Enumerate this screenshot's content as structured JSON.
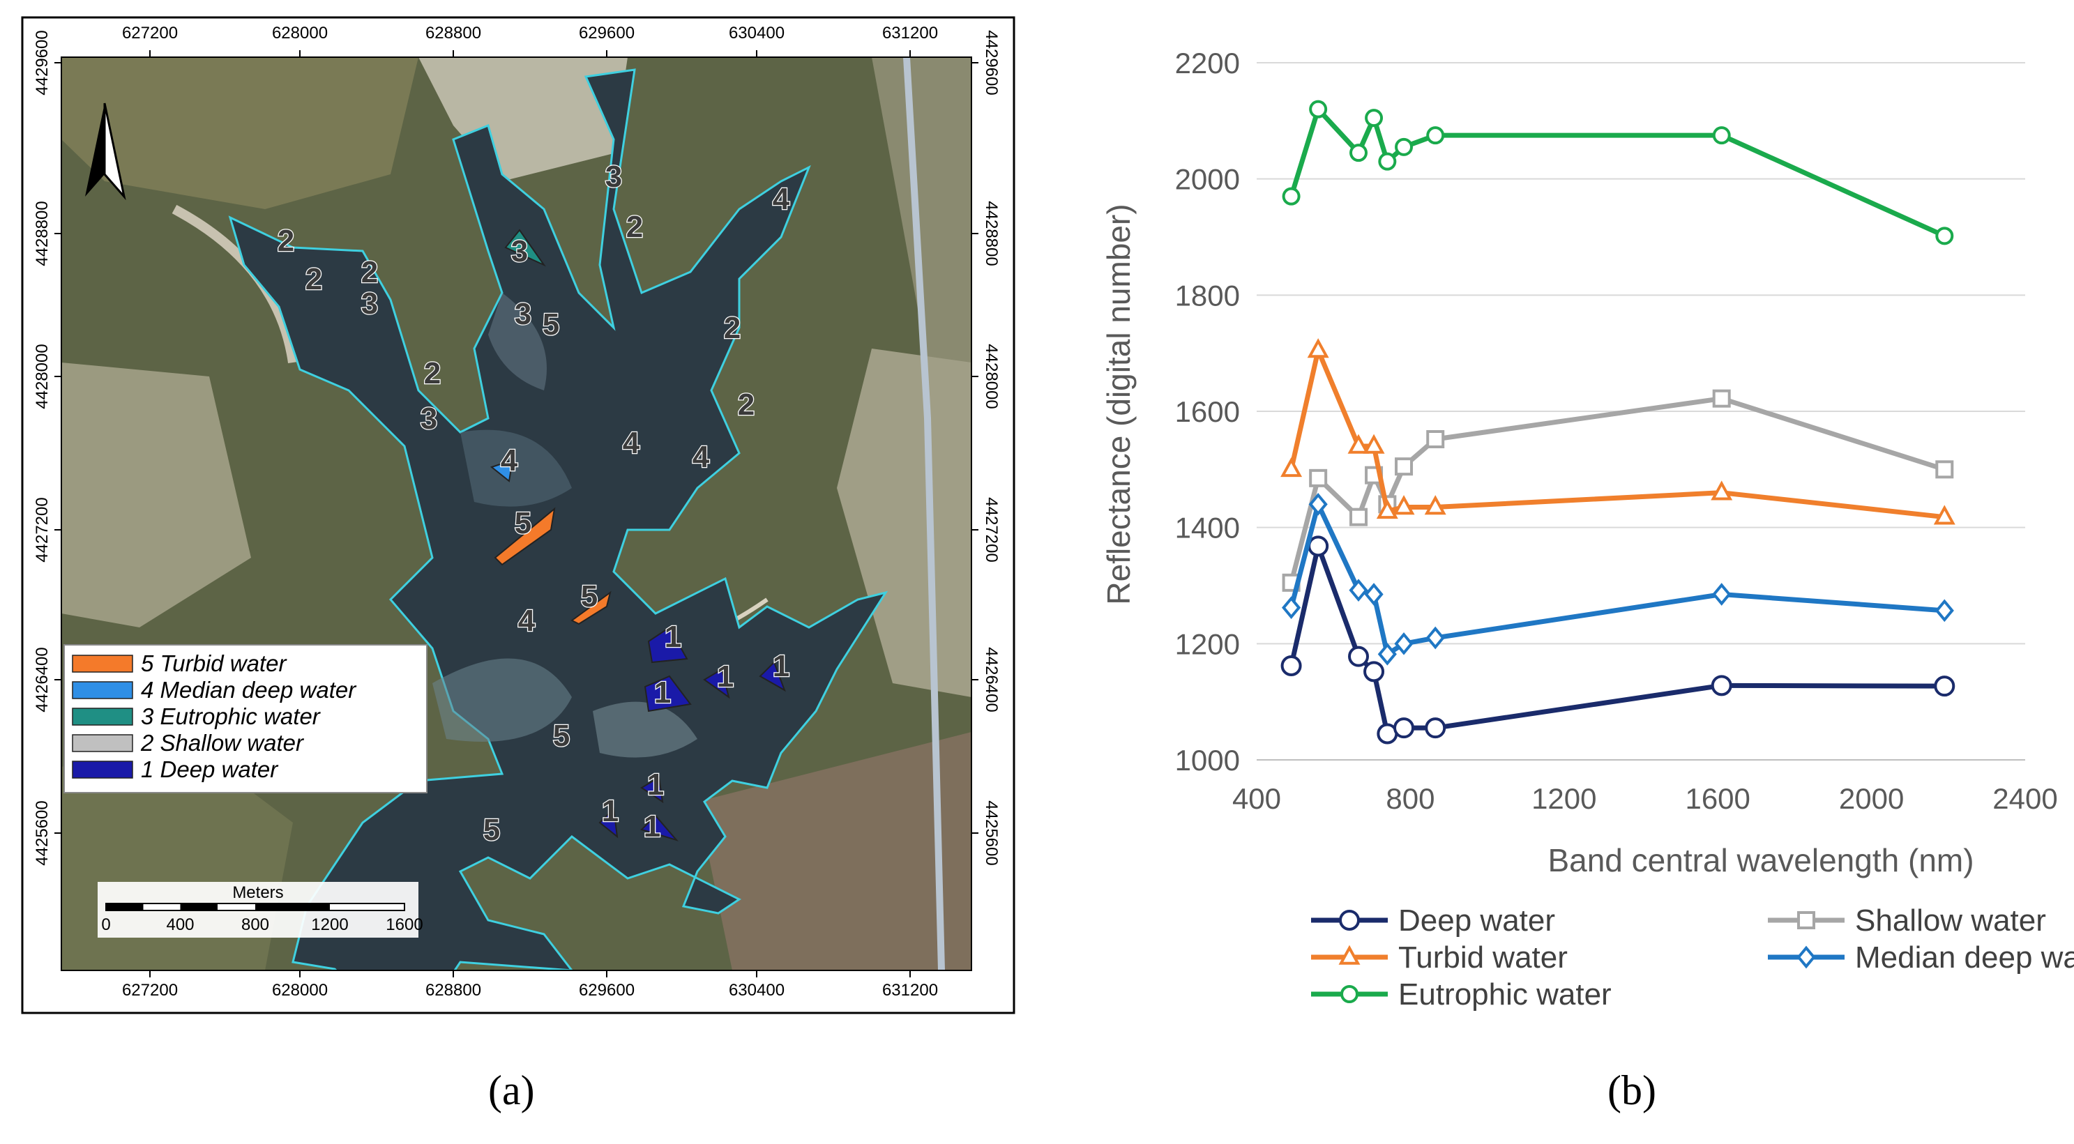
{
  "map": {
    "top_ticks": [
      "627200",
      "628000",
      "628800",
      "629600",
      "630400",
      "631200"
    ],
    "side_ticks": [
      "4429600",
      "4428800",
      "4428000",
      "4427200",
      "4426400",
      "4425600"
    ],
    "legend": [
      {
        "label": "5 Turbid water",
        "color": "#f47a2a"
      },
      {
        "label": "4 Median deep water",
        "color": "#2f8fe6"
      },
      {
        "label": "3 Eutrophic water",
        "color": "#1f8f84"
      },
      {
        "label": "2 Shallow water",
        "color": "#c0c0c0"
      },
      {
        "label": "1 Deep water",
        "color": "#1a1aa8"
      }
    ],
    "scale_title": "Meters",
    "scale_labels": [
      "0",
      "400",
      "800",
      "1200",
      "1600"
    ],
    "class_labels": [
      "2",
      "2",
      "2",
      "3",
      "3",
      "3",
      "3",
      "5",
      "2",
      "2",
      "2",
      "2",
      "3",
      "4",
      "4",
      "4",
      "4",
      "4",
      "5",
      "5",
      "1",
      "1",
      "1",
      "1",
      "5",
      "1",
      "1",
      "1",
      "5"
    ],
    "caption": "(a)"
  },
  "chart_caption": "(b)",
  "chart_data": {
    "type": "line",
    "title": "",
    "xlabel": "Band central wavelength (nm)",
    "ylabel": "Reflectance (digital number)",
    "xlim": [
      400,
      2400
    ],
    "ylim": [
      1000,
      2200
    ],
    "xticks": [
      "400",
      "800",
      "1200",
      "1600",
      "2000",
      "2400"
    ],
    "yticks": [
      "1000",
      "1200",
      "1400",
      "1600",
      "1800",
      "2000",
      "2200"
    ],
    "grid": "horizontal",
    "legend_position": "bottom",
    "series": [
      {
        "name": "Deep water",
        "color": "#1a2b6b",
        "marker": "circle",
        "x": [
          490,
          560,
          665,
          705,
          740,
          783,
          865,
          1610,
          2190
        ],
        "y": [
          1162,
          1368,
          1178,
          1152,
          1045,
          1055,
          1055,
          1128,
          1127
        ]
      },
      {
        "name": "Shallow water",
        "color": "#a6a6a6",
        "marker": "square",
        "x": [
          490,
          560,
          665,
          705,
          740,
          783,
          865,
          1610,
          2190
        ],
        "y": [
          1305,
          1485,
          1418,
          1490,
          1440,
          1505,
          1552,
          1622,
          1500
        ]
      },
      {
        "name": "Turbid water",
        "color": "#f07f2c",
        "marker": "triangle",
        "x": [
          490,
          560,
          665,
          705,
          740,
          783,
          865,
          1610,
          2190
        ],
        "y": [
          1500,
          1705,
          1540,
          1540,
          1428,
          1435,
          1435,
          1460,
          1418
        ]
      },
      {
        "name": "Median deep water",
        "color": "#1f77c4",
        "marker": "diamond",
        "x": [
          490,
          560,
          665,
          705,
          740,
          783,
          865,
          1610,
          2190
        ],
        "y": [
          1262,
          1440,
          1292,
          1285,
          1182,
          1200,
          1210,
          1285,
          1257
        ]
      },
      {
        "name": "Eutrophic water",
        "color": "#1aaa4c",
        "marker": "circle",
        "x": [
          490,
          560,
          665,
          705,
          740,
          783,
          865,
          1610,
          2190
        ],
        "y": [
          1970,
          2120,
          2045,
          2105,
          2030,
          2055,
          2075,
          2075,
          1902
        ]
      }
    ]
  }
}
